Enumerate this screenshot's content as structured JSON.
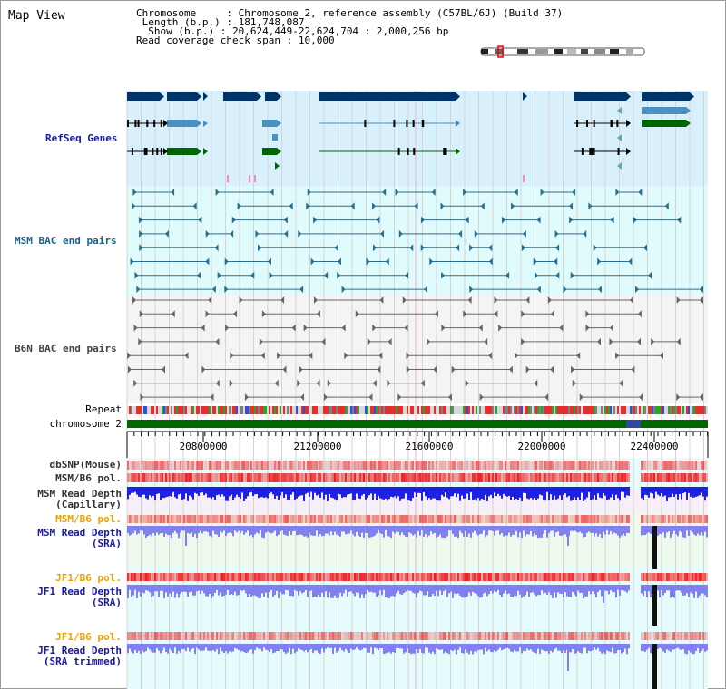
{
  "title": "Map View",
  "info": {
    "line1_key": "Chromosome",
    "line1_val": "Chromosome 2, reference assembly (C57BL/6J) (Build 37)",
    "line2_key": "Length (b.p.)",
    "line2_val": "181,748,087",
    "line3_key": "Show (b.p.)",
    "line3_val": "20,624,449-22,624,704 : 2,000,256 bp",
    "line4_key": "Read coverage check span",
    "line4_val": "10,000"
  },
  "tracks": {
    "refseq": "RefSeq Genes",
    "msm_bac": "MSM BAC end pairs",
    "b6n_bac": "B6N BAC end pairs",
    "repeat": "Repeat",
    "chromosome": "chromosome 2",
    "dbsnp": "dbSNP(Mouse)",
    "msm_pol": "MSM/B6 pol.",
    "msm_depth_cap_1": "MSM Read Depth",
    "msm_depth_cap_2": "(Capillary)",
    "msm_pol2": "MSM/B6 pol.",
    "msm_depth_sra_1": "MSM Read Depth",
    "msm_depth_sra_2": "(SRA)",
    "jf1_pol": "JF1/B6 pol.",
    "jf1_depth_sra_1": "JF1 Read Depth",
    "jf1_depth_sra_2": "(SRA)",
    "jf1_pol2": "JF1/B6 pol.",
    "jf1_depth_trim_1": "JF1 Read Depth",
    "jf1_depth_trim_2": "(SRA trimmed)"
  },
  "axis": {
    "ticks": [
      "20800000",
      "21200000",
      "21600000",
      "22000000",
      "22400000"
    ]
  },
  "colors": {
    "refseq_bg": "#d8f0fb",
    "msm_bac_bg": "#e0fbfb",
    "b6n_bac_bg": "#f4f4f4",
    "chrom_green": "#006600",
    "gene_navy": "#003366",
    "gene_blue": "#4a90c0",
    "gene_green": "#006600",
    "depth_blue": "#2020e0",
    "depth_light": "#8080ee",
    "pol_red": "#ee2222",
    "grid_line": "#c8c8c8"
  }
}
